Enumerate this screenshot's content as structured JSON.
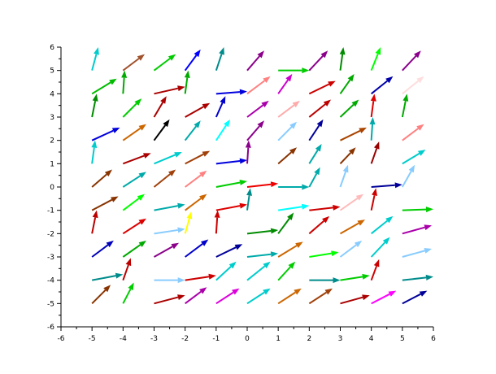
{
  "chart_data": {
    "type": "quiver",
    "title": "",
    "xlabel": "",
    "ylabel": "",
    "xlim": [
      -6,
      6
    ],
    "ylim": [
      -6,
      6
    ],
    "xticks": [
      -6,
      -5,
      -4,
      -3,
      -2,
      -1,
      0,
      1,
      2,
      3,
      4,
      5,
      6
    ],
    "yticks": [
      -6,
      -5,
      -4,
      -3,
      -2,
      -1,
      0,
      1,
      2,
      3,
      4,
      5,
      6
    ],
    "grid": false,
    "x": [
      -5,
      -4,
      -3,
      -2,
      -1,
      0,
      1,
      2,
      3,
      4,
      5
    ],
    "y_rows_top_to_bottom": [
      5,
      4,
      3,
      2,
      1,
      0,
      -1,
      -2,
      -3,
      -4,
      -5
    ],
    "vectors": [
      [
        [
          0.2,
          1.0,
          "#00cccc"
        ],
        [
          0.7,
          0.7,
          "#a0522d"
        ],
        [
          0.7,
          0.7,
          "#00cc00"
        ],
        [
          0.5,
          0.9,
          "#0000ff"
        ],
        [
          0.25,
          1.0,
          "#008b8b"
        ],
        [
          0.55,
          0.85,
          "#8b008b"
        ],
        [
          1.0,
          0.0,
          "#00cc00"
        ],
        [
          0.6,
          0.85,
          "#8b008b"
        ],
        [
          0.1,
          1.0,
          "#008b00"
        ],
        [
          0.3,
          1.0,
          "#00ff00"
        ],
        [
          0.6,
          0.85,
          "#8b008b"
        ]
      ],
      [
        [
          0.8,
          0.65,
          "#00bb00"
        ],
        [
          0.05,
          1.0,
          "#00aa00"
        ],
        [
          1.0,
          0.3,
          "#aa0000"
        ],
        [
          0.1,
          1.0,
          "#00aa00"
        ],
        [
          1.0,
          0.1,
          "#0000dd"
        ],
        [
          0.75,
          0.75,
          "#ff8080"
        ],
        [
          0.45,
          0.85,
          "#cc00cc"
        ],
        [
          0.85,
          0.55,
          "#cc0000"
        ],
        [
          0.45,
          0.85,
          "#00aa00"
        ],
        [
          0.7,
          0.75,
          "#0000aa"
        ],
        [
          0.7,
          0.75,
          "#ffdddd"
        ]
      ],
      [
        [
          0.15,
          1.0,
          "#008b00"
        ],
        [
          0.6,
          0.8,
          "#00cc00"
        ],
        [
          0.4,
          0.9,
          "#aa0000"
        ],
        [
          0.8,
          0.6,
          "#aa0000"
        ],
        [
          0.3,
          0.9,
          "#0000cc"
        ],
        [
          0.7,
          0.7,
          "#aa00aa"
        ],
        [
          0.7,
          0.7,
          "#ffaaaa"
        ],
        [
          0.7,
          0.75,
          "#bb0000"
        ],
        [
          0.6,
          0.75,
          "#00aa00"
        ],
        [
          0.1,
          1.0,
          "#dd0000"
        ],
        [
          0.15,
          1.0,
          "#00aa00"
        ]
      ],
      [
        [
          0.9,
          0.55,
          "#0000dd"
        ],
        [
          0.75,
          0.7,
          "#cc6600"
        ],
        [
          0.5,
          0.9,
          "#000000"
        ],
        [
          0.5,
          0.85,
          "#00aaaa"
        ],
        [
          0.45,
          0.9,
          "#00ffff"
        ],
        [
          0.55,
          0.85,
          "#8b008b"
        ],
        [
          0.6,
          0.8,
          "#88ccff"
        ],
        [
          0.45,
          0.9,
          "#000099"
        ],
        [
          0.85,
          0.55,
          "#aa4400"
        ],
        [
          0.05,
          1.0,
          "#00aaaa"
        ],
        [
          0.7,
          0.7,
          "#ff8080"
        ]
      ],
      [
        [
          0.1,
          1.0,
          "#00cccc"
        ],
        [
          0.9,
          0.45,
          "#aa0000"
        ],
        [
          0.9,
          0.5,
          "#00cccc"
        ],
        [
          0.8,
          0.55,
          "#a0400a"
        ],
        [
          1.0,
          0.15,
          "#0000dd"
        ],
        [
          0.05,
          1.0,
          "#8b008b"
        ],
        [
          0.6,
          0.7,
          "#883300"
        ],
        [
          0.4,
          0.85,
          "#00aaaa"
        ],
        [
          0.5,
          0.7,
          "#883300"
        ],
        [
          0.25,
          0.95,
          "#990000"
        ],
        [
          0.75,
          0.6,
          "#00cccc"
        ]
      ],
      [
        [
          0.65,
          0.75,
          "#883300"
        ],
        [
          0.75,
          0.65,
          "#00aaaa"
        ],
        [
          0.7,
          0.75,
          "#a0400a"
        ],
        [
          0.7,
          0.7,
          "#ff8080"
        ],
        [
          1.0,
          0.25,
          "#00cc00"
        ],
        [
          1.0,
          0.15,
          "#ee0000"
        ],
        [
          1.0,
          0.0,
          "#00aaaa"
        ],
        [
          0.35,
          0.85,
          "#00aaaa"
        ],
        [
          0.25,
          0.95,
          "#88ccff"
        ],
        [
          1.0,
          0.1,
          "#000099"
        ],
        [
          0.4,
          0.95,
          "#88ccff"
        ]
      ],
      [
        [
          0.85,
          0.6,
          "#883300"
        ],
        [
          0.7,
          0.7,
          "#00ff00"
        ],
        [
          1.0,
          0.25,
          "#00aaaa"
        ],
        [
          0.7,
          0.7,
          "#cc6600"
        ],
        [
          1.0,
          0.25,
          "#dd0000"
        ],
        [
          0.1,
          0.95,
          "#008b8b"
        ],
        [
          1.0,
          0.2,
          "#00ffff"
        ],
        [
          1.0,
          0.15,
          "#cc0000"
        ],
        [
          0.75,
          0.7,
          "#ffbbbb"
        ],
        [
          0.15,
          0.95,
          "#cc0000"
        ],
        [
          1.0,
          0.05,
          "#00cc00"
        ]
      ],
      [
        [
          0.15,
          1.0,
          "#bb0000"
        ],
        [
          0.75,
          0.65,
          "#dd0000"
        ],
        [
          1.0,
          0.2,
          "#88ccff"
        ],
        [
          0.2,
          0.95,
          "#ffff00"
        ],
        [
          0.05,
          1.0,
          "#cc0000"
        ],
        [
          1.0,
          0.15,
          "#008b00"
        ],
        [
          0.5,
          0.9,
          "#008b00"
        ],
        [
          0.65,
          0.75,
          "#cc0000"
        ],
        [
          0.8,
          0.6,
          "#cc6600"
        ],
        [
          0.7,
          0.75,
          "#00cccc"
        ],
        [
          0.95,
          0.35,
          "#aa00aa"
        ]
      ],
      [
        [
          0.7,
          0.7,
          "#0000bb"
        ],
        [
          0.75,
          0.7,
          "#00aa00"
        ],
        [
          0.8,
          0.6,
          "#8b008b"
        ],
        [
          0.75,
          0.75,
          "#0000cc"
        ],
        [
          0.85,
          0.55,
          "#000099"
        ],
        [
          1.0,
          0.15,
          "#00aaaa"
        ],
        [
          0.8,
          0.65,
          "#cc6600"
        ],
        [
          0.95,
          0.2,
          "#00ff00"
        ],
        [
          0.7,
          0.7,
          "#88ccff"
        ],
        [
          0.6,
          0.85,
          "#00cccc"
        ],
        [
          0.95,
          0.35,
          "#88ccff"
        ]
      ],
      [
        [
          1.0,
          0.25,
          "#008b8b"
        ],
        [
          0.25,
          0.95,
          "#bb0000"
        ],
        [
          1.0,
          0.0,
          "#88ccff"
        ],
        [
          1.0,
          0.2,
          "#cc0000"
        ],
        [
          0.65,
          0.8,
          "#00cccc"
        ],
        [
          0.75,
          0.8,
          "#00cccc"
        ],
        [
          0.55,
          0.8,
          "#00cc00"
        ],
        [
          1.0,
          0.0,
          "#008b8b"
        ],
        [
          0.95,
          0.2,
          "#00cc00"
        ],
        [
          0.25,
          0.9,
          "#cc0000"
        ],
        [
          1.0,
          0.15,
          "#008b8b"
        ]
      ],
      [
        [
          0.6,
          0.8,
          "#883300"
        ],
        [
          0.35,
          0.9,
          "#00cc00"
        ],
        [
          1.0,
          0.35,
          "#aa0000"
        ],
        [
          0.7,
          0.7,
          "#aa00aa"
        ],
        [
          0.75,
          0.65,
          "#dd00dd"
        ],
        [
          0.75,
          0.65,
          "#00cccc"
        ],
        [
          0.75,
          0.65,
          "#cc6600"
        ],
        [
          0.75,
          0.65,
          "#a0400a"
        ],
        [
          0.95,
          0.35,
          "#aa0000"
        ],
        [
          0.8,
          0.55,
          "#ff00ff"
        ],
        [
          0.8,
          0.55,
          "#000099"
        ]
      ]
    ]
  }
}
